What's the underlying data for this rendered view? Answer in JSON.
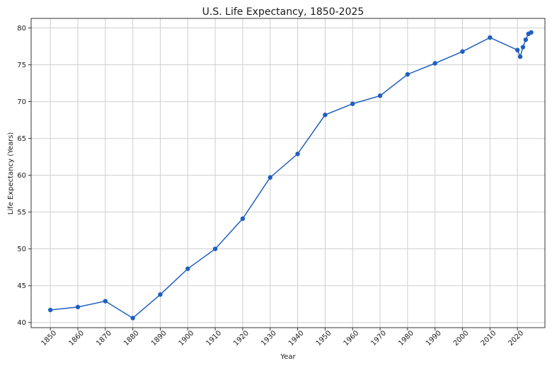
{
  "colors": {
    "series": "#1f5fbf",
    "grid": "#cfcfcf",
    "axis": "#333333"
  },
  "chart_data": {
    "type": "line",
    "title": "U.S. Life Expectancy, 1850-2025",
    "xlabel": "Year",
    "ylabel": "Life Expectancy (Years)",
    "xlim": [
      1843,
      2030
    ],
    "ylim": [
      39.3,
      81.3
    ],
    "grid": true,
    "xticks": [
      1850,
      1860,
      1870,
      1880,
      1890,
      1900,
      1910,
      1920,
      1930,
      1940,
      1950,
      1960,
      1970,
      1980,
      1990,
      2000,
      2010,
      2020
    ],
    "yticks": [
      40,
      45,
      50,
      55,
      60,
      65,
      70,
      75,
      80
    ],
    "series": [
      {
        "name": "Life Expectancy",
        "marker": "circle",
        "x": [
          1850,
          1860,
          1870,
          1880,
          1890,
          1900,
          1910,
          1920,
          1930,
          1940,
          1950,
          1960,
          1970,
          1980,
          1990,
          2000,
          2010,
          2020,
          2021,
          2022,
          2023,
          2024,
          2025
        ],
        "y": [
          41.7,
          42.1,
          42.9,
          40.6,
          43.8,
          47.3,
          50.0,
          54.1,
          59.7,
          62.9,
          68.2,
          69.7,
          70.8,
          73.7,
          75.2,
          76.8,
          78.7,
          77.0,
          76.1,
          77.4,
          78.4,
          79.2,
          79.4
        ]
      }
    ]
  }
}
